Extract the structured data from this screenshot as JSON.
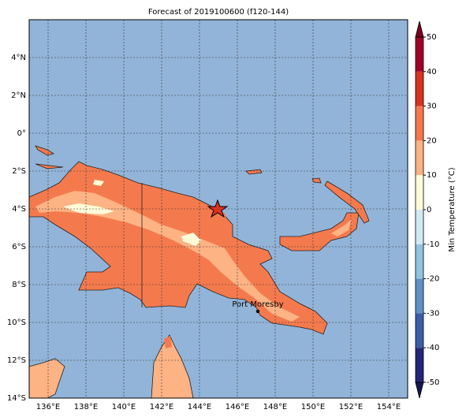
{
  "title": "Forecast of 2019100600 (f120-144)",
  "map": {
    "xlim": [
      135,
      155
    ],
    "ylim": [
      -14,
      6
    ],
    "xticks": [
      {
        "value": 136,
        "label": "136°E"
      },
      {
        "value": 138,
        "label": "138°E"
      },
      {
        "value": 140,
        "label": "140°E"
      },
      {
        "value": 142,
        "label": "142°E"
      },
      {
        "value": 144,
        "label": "144°E"
      },
      {
        "value": 146,
        "label": "146°E"
      },
      {
        "value": 148,
        "label": "148°E"
      },
      {
        "value": 150,
        "label": "150°E"
      },
      {
        "value": 152,
        "label": "152°E"
      },
      {
        "value": 154,
        "label": "154°E"
      }
    ],
    "yticks": [
      {
        "value": 4,
        "label": "4°N"
      },
      {
        "value": 2,
        "label": "2°N"
      },
      {
        "value": 0,
        "label": "0°"
      },
      {
        "value": -2,
        "label": "2°S"
      },
      {
        "value": -4,
        "label": "4°S"
      },
      {
        "value": -6,
        "label": "6°S"
      },
      {
        "value": -8,
        "label": "8°S"
      },
      {
        "value": -10,
        "label": "10°S"
      },
      {
        "value": -12,
        "label": "12°S"
      },
      {
        "value": -14,
        "label": "14°S"
      }
    ],
    "city": "Port Moresby"
  },
  "colorbar": {
    "label": "Min Temperature (°C)",
    "levels": [
      -50,
      -40,
      -30,
      -20,
      -10,
      0,
      10,
      20,
      30,
      40,
      50
    ],
    "colors": [
      "#24247a",
      "#3b5da8",
      "#5e91c5",
      "#92c3e0",
      "#cfeaf3",
      "#fffbd8",
      "#fdb384",
      "#f6784a",
      "#d9331f",
      "#a00025"
    ],
    "extend_colors": [
      "#151552",
      "#7a0020"
    ],
    "ticks": [
      -50,
      -40,
      -30,
      -20,
      -10,
      0,
      10,
      20,
      30,
      40,
      50
    ]
  }
}
